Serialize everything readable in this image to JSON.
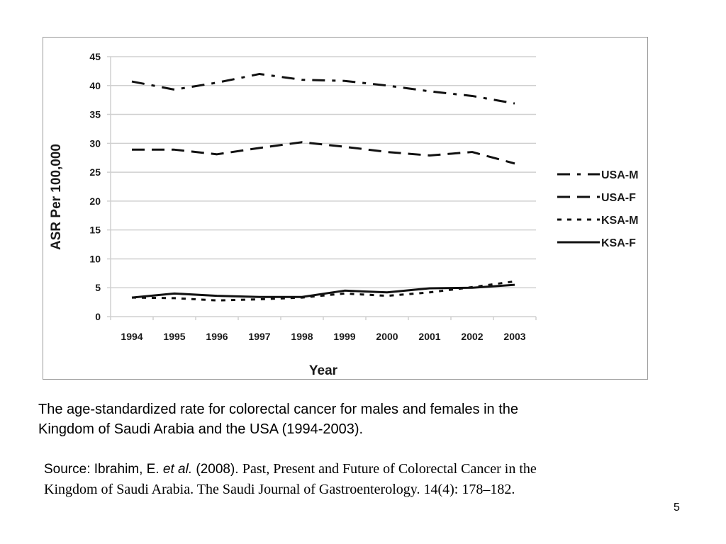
{
  "chart_data": {
    "type": "line",
    "title": "",
    "xlabel": "Year",
    "ylabel": "ASR Per 100,000",
    "ylim": [
      0,
      45
    ],
    "yticks": [
      0,
      5,
      10,
      15,
      20,
      25,
      30,
      35,
      40,
      45
    ],
    "grid": true,
    "legend_position": "right",
    "categories": [
      "1994",
      "1995",
      "1996",
      "1997",
      "1998",
      "1999",
      "2000",
      "2001",
      "2002",
      "2003"
    ],
    "series": [
      {
        "name": "USA-M",
        "style": "dash-dot",
        "values": [
          40.7,
          39.3,
          40.5,
          42.0,
          41.0,
          40.8,
          40.0,
          39.0,
          38.2,
          36.9
        ]
      },
      {
        "name": "USA-F",
        "style": "long-dash",
        "values": [
          28.9,
          28.9,
          28.1,
          29.2,
          30.2,
          29.4,
          28.5,
          27.9,
          28.5,
          26.5
        ]
      },
      {
        "name": "KSA-M",
        "style": "dotted",
        "values": [
          3.3,
          3.2,
          2.8,
          3.0,
          3.3,
          4.0,
          3.6,
          4.2,
          5.1,
          6.1
        ]
      },
      {
        "name": "KSA-F",
        "style": "solid",
        "values": [
          3.3,
          4.0,
          3.6,
          3.4,
          3.4,
          4.5,
          4.2,
          4.9,
          5.0,
          5.5
        ]
      }
    ]
  },
  "caption": {
    "line1": "The age-standardized rate for colorectal cancer for males and females in the",
    "line2": "Kingdom of Saudi Arabia and the USA (1994-2003)."
  },
  "source": {
    "prefix": "Source: Ibrahim, E. ",
    "etal": "et al.",
    "year": " (2008). ",
    "title_line1": "Past, Present and Future of Colorectal Cancer in the",
    "title_line2": "Kingdom of Saudi Arabia. The Saudi Journal of Gastroenterology. 14(4): 178–182."
  },
  "slide_number": "5"
}
